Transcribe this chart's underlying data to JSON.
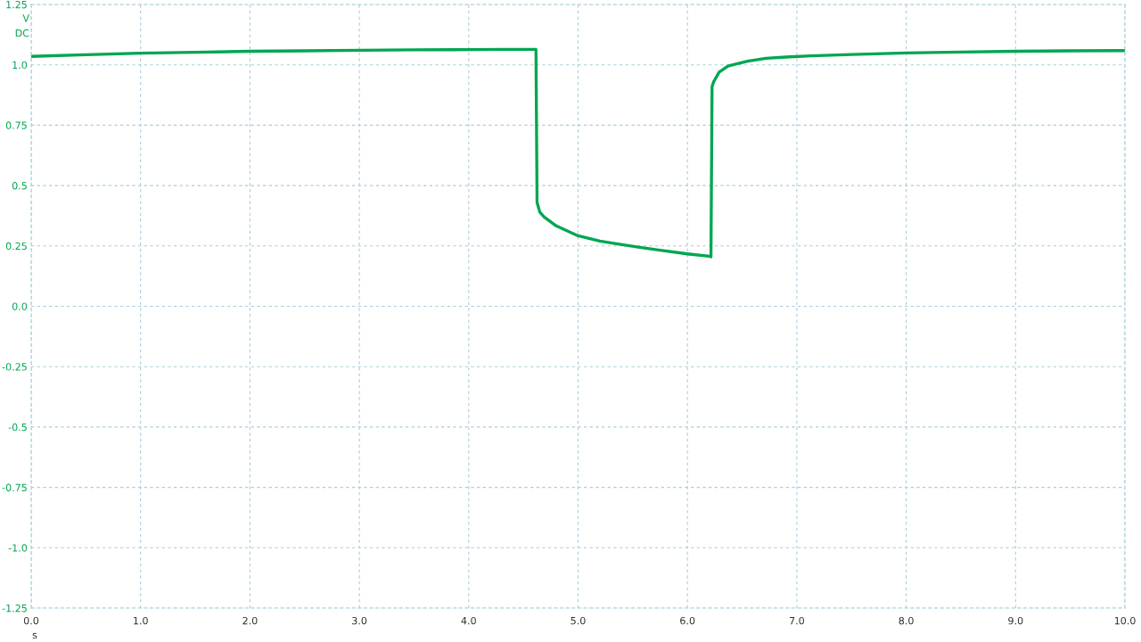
{
  "chart_data": {
    "type": "line",
    "xlabel": "s",
    "ylabel": "V\nDC",
    "series": [
      {
        "color": "#00a651",
        "x": [
          0.0,
          0.5,
          1.0,
          1.5,
          2.0,
          2.5,
          3.0,
          3.5,
          4.0,
          4.3,
          4.6,
          4.615,
          4.625,
          4.65,
          4.69,
          4.8,
          5.0,
          5.2,
          5.35,
          5.55,
          5.75,
          6.0,
          6.2,
          6.215,
          6.225,
          6.24,
          6.29,
          6.37,
          6.45,
          6.55,
          6.72,
          6.9,
          7.13,
          7.5,
          8.0,
          8.5,
          9.0,
          9.5,
          10.0
        ],
        "values": [
          1.035,
          1.042,
          1.048,
          1.052,
          1.056,
          1.058,
          1.06,
          1.062,
          1.063,
          1.064,
          1.064,
          1.064,
          0.43,
          0.39,
          0.37,
          0.333,
          0.292,
          0.27,
          0.259,
          0.245,
          0.232,
          0.217,
          0.207,
          0.205,
          0.91,
          0.93,
          0.97,
          0.995,
          1.004,
          1.015,
          1.027,
          1.032,
          1.037,
          1.043,
          1.049,
          1.053,
          1.056,
          1.058,
          1.059
        ]
      }
    ],
    "xlim": [
      0.0,
      10.0
    ],
    "xticks": [
      {
        "value": 0.0,
        "label": "0.0"
      },
      {
        "value": 1.0,
        "label": "1.0"
      },
      {
        "value": 2.0,
        "label": "2.0"
      },
      {
        "value": 3.0,
        "label": "3.0"
      },
      {
        "value": 4.0,
        "label": "4.0"
      },
      {
        "value": 5.0,
        "label": "5.0"
      },
      {
        "value": 6.0,
        "label": "6.0"
      },
      {
        "value": 7.0,
        "label": "7.0"
      },
      {
        "value": 8.0,
        "label": "8.0"
      },
      {
        "value": 9.0,
        "label": "9.0"
      },
      {
        "value": 10.0,
        "label": "10.0"
      }
    ],
    "ylim": [
      -1.25,
      1.25
    ],
    "yticks": [
      {
        "value": -1.25,
        "label": "-1.25"
      },
      {
        "value": -1.0,
        "label": "-1.0"
      },
      {
        "value": -0.75,
        "label": "-0.75"
      },
      {
        "value": -0.5,
        "label": "-0.5"
      },
      {
        "value": -0.25,
        "label": "-0.25"
      },
      {
        "value": 0.0,
        "label": "0.0"
      },
      {
        "value": 0.25,
        "label": "0.25"
      },
      {
        "value": 0.5,
        "label": "0.5"
      },
      {
        "value": 0.75,
        "label": "0.75"
      },
      {
        "value": 1.0,
        "label": "1.0"
      },
      {
        "value": 1.25,
        "label": "1.25"
      }
    ],
    "grid": true,
    "marker": "none",
    "line_style": "solid"
  }
}
